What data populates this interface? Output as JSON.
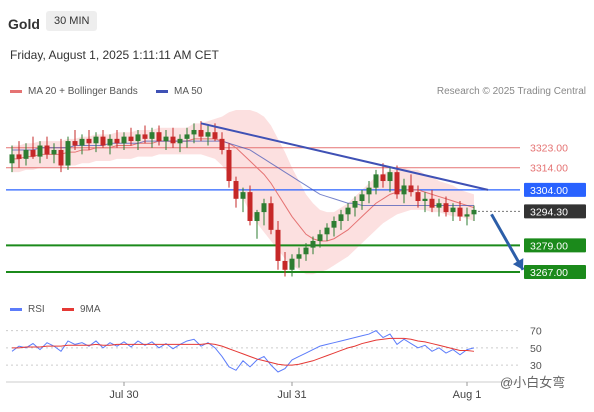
{
  "header": {
    "title": "Gold",
    "timeframe": "30 MIN"
  },
  "timestamp": "Friday, August 1, 2025 1:11:11 AM CET",
  "legend": {
    "ma20_label": "MA 20 + Bollinger Bands",
    "ma50_label": "MA 50"
  },
  "credit": "Research © 2025 Trading Central",
  "rsi_legend": {
    "rsi_label": "RSI",
    "ma_label": "9MA"
  },
  "watermark": "@小白女弯",
  "colors": {
    "up": "#2e7d32",
    "down": "#c62828",
    "ma20": "#e57373",
    "ma50": "#3f51b5",
    "band": "#f8bbbb",
    "resistance": "#e57373",
    "pivot": "#2962ff",
    "support": "#1b8a1b",
    "trendline": "#3f51b5",
    "rsi": "#5c7cfa",
    "rsi_ma": "#e53935"
  },
  "chart_data": {
    "type": "candlestick",
    "instrument": "Gold",
    "timeframe": "30 MIN",
    "x_ticks": [
      "Jul 30",
      "Jul 31",
      "Aug 1"
    ],
    "x_tick_index": [
      16,
      40,
      65
    ],
    "price_ylim": [
      3258,
      3340
    ],
    "levels": [
      {
        "label": "3323.00",
        "value": 3323,
        "kind": "resistance"
      },
      {
        "label": "3314.00",
        "value": 3314,
        "kind": "resistance"
      },
      {
        "label": "3304.00",
        "value": 3304,
        "kind": "pivot"
      },
      {
        "label": "3294.30",
        "value": 3294.3,
        "kind": "current"
      },
      {
        "label": "3279.00",
        "value": 3279,
        "kind": "support"
      },
      {
        "label": "3267.00",
        "value": 3267,
        "kind": "support"
      }
    ],
    "trendline": {
      "from": [
        27,
        3334
      ],
      "to": [
        68,
        3304
      ]
    },
    "forecast_arrow": {
      "from": [
        68.5,
        3293
      ],
      "to": [
        73,
        3268
      ]
    },
    "candles": [
      {
        "o": 3316,
        "h": 3324,
        "l": 3312,
        "c": 3320
      },
      {
        "o": 3320,
        "h": 3326,
        "l": 3314,
        "c": 3318
      },
      {
        "o": 3318,
        "h": 3325,
        "l": 3315,
        "c": 3322
      },
      {
        "o": 3322,
        "h": 3328,
        "l": 3318,
        "c": 3319
      },
      {
        "o": 3319,
        "h": 3326,
        "l": 3316,
        "c": 3324
      },
      {
        "o": 3324,
        "h": 3328,
        "l": 3318,
        "c": 3320
      },
      {
        "o": 3320,
        "h": 3325,
        "l": 3316,
        "c": 3322
      },
      {
        "o": 3322,
        "h": 3327,
        "l": 3312,
        "c": 3315
      },
      {
        "o": 3315,
        "h": 3328,
        "l": 3313,
        "c": 3326
      },
      {
        "o": 3326,
        "h": 3331,
        "l": 3322,
        "c": 3324
      },
      {
        "o": 3324,
        "h": 3329,
        "l": 3320,
        "c": 3327
      },
      {
        "o": 3327,
        "h": 3331,
        "l": 3322,
        "c": 3325
      },
      {
        "o": 3325,
        "h": 3330,
        "l": 3321,
        "c": 3328
      },
      {
        "o": 3328,
        "h": 3331,
        "l": 3323,
        "c": 3324
      },
      {
        "o": 3324,
        "h": 3329,
        "l": 3320,
        "c": 3327
      },
      {
        "o": 3327,
        "h": 3331,
        "l": 3323,
        "c": 3325
      },
      {
        "o": 3325,
        "h": 3330,
        "l": 3322,
        "c": 3328
      },
      {
        "o": 3328,
        "h": 3332,
        "l": 3324,
        "c": 3326
      },
      {
        "o": 3326,
        "h": 3331,
        "l": 3322,
        "c": 3329
      },
      {
        "o": 3329,
        "h": 3333,
        "l": 3325,
        "c": 3327
      },
      {
        "o": 3327,
        "h": 3332,
        "l": 3323,
        "c": 3330
      },
      {
        "o": 3330,
        "h": 3333,
        "l": 3324,
        "c": 3326
      },
      {
        "o": 3326,
        "h": 3331,
        "l": 3322,
        "c": 3328
      },
      {
        "o": 3328,
        "h": 3332,
        "l": 3323,
        "c": 3325
      },
      {
        "o": 3325,
        "h": 3329,
        "l": 3321,
        "c": 3327
      },
      {
        "o": 3327,
        "h": 3332,
        "l": 3323,
        "c": 3329
      },
      {
        "o": 3329,
        "h": 3334,
        "l": 3325,
        "c": 3331
      },
      {
        "o": 3331,
        "h": 3335,
        "l": 3326,
        "c": 3328
      },
      {
        "o": 3328,
        "h": 3333,
        "l": 3324,
        "c": 3330
      },
      {
        "o": 3330,
        "h": 3334,
        "l": 3326,
        "c": 3327
      },
      {
        "o": 3327,
        "h": 3330,
        "l": 3320,
        "c": 3322
      },
      {
        "o": 3322,
        "h": 3325,
        "l": 3305,
        "c": 3308
      },
      {
        "o": 3308,
        "h": 3310,
        "l": 3296,
        "c": 3300
      },
      {
        "o": 3300,
        "h": 3305,
        "l": 3294,
        "c": 3303
      },
      {
        "o": 3303,
        "h": 3306,
        "l": 3288,
        "c": 3290
      },
      {
        "o": 3290,
        "h": 3295,
        "l": 3282,
        "c": 3294
      },
      {
        "o": 3294,
        "h": 3300,
        "l": 3288,
        "c": 3298
      },
      {
        "o": 3298,
        "h": 3301,
        "l": 3284,
        "c": 3286
      },
      {
        "o": 3286,
        "h": 3290,
        "l": 3268,
        "c": 3272
      },
      {
        "o": 3272,
        "h": 3276,
        "l": 3265,
        "c": 3268
      },
      {
        "o": 3268,
        "h": 3275,
        "l": 3265,
        "c": 3273
      },
      {
        "o": 3273,
        "h": 3278,
        "l": 3269,
        "c": 3275
      },
      {
        "o": 3275,
        "h": 3280,
        "l": 3272,
        "c": 3278
      },
      {
        "o": 3278,
        "h": 3283,
        "l": 3275,
        "c": 3281
      },
      {
        "o": 3281,
        "h": 3286,
        "l": 3278,
        "c": 3284
      },
      {
        "o": 3284,
        "h": 3289,
        "l": 3281,
        "c": 3287
      },
      {
        "o": 3287,
        "h": 3292,
        "l": 3283,
        "c": 3290
      },
      {
        "o": 3290,
        "h": 3295,
        "l": 3286,
        "c": 3293
      },
      {
        "o": 3293,
        "h": 3298,
        "l": 3290,
        "c": 3296
      },
      {
        "o": 3296,
        "h": 3301,
        "l": 3292,
        "c": 3299
      },
      {
        "o": 3299,
        "h": 3304,
        "l": 3295,
        "c": 3302
      },
      {
        "o": 3302,
        "h": 3308,
        "l": 3298,
        "c": 3305
      },
      {
        "o": 3305,
        "h": 3313,
        "l": 3302,
        "c": 3311
      },
      {
        "o": 3311,
        "h": 3316,
        "l": 3305,
        "c": 3308
      },
      {
        "o": 3308,
        "h": 3314,
        "l": 3303,
        "c": 3312
      },
      {
        "o": 3312,
        "h": 3315,
        "l": 3300,
        "c": 3302
      },
      {
        "o": 3302,
        "h": 3309,
        "l": 3298,
        "c": 3306
      },
      {
        "o": 3306,
        "h": 3311,
        "l": 3301,
        "c": 3303
      },
      {
        "o": 3303,
        "h": 3306,
        "l": 3296,
        "c": 3299
      },
      {
        "o": 3299,
        "h": 3303,
        "l": 3294,
        "c": 3300
      },
      {
        "o": 3300,
        "h": 3304,
        "l": 3294,
        "c": 3296
      },
      {
        "o": 3296,
        "h": 3300,
        "l": 3292,
        "c": 3298
      },
      {
        "o": 3298,
        "h": 3301,
        "l": 3292,
        "c": 3294
      },
      {
        "o": 3294,
        "h": 3298,
        "l": 3290,
        "c": 3296
      },
      {
        "o": 3296,
        "h": 3299,
        "l": 3290,
        "c": 3292
      },
      {
        "o": 3292,
        "h": 3296,
        "l": 3288,
        "c": 3293
      },
      {
        "o": 3293,
        "h": 3297,
        "l": 3290,
        "c": 3295
      }
    ],
    "ma20": [
      3318,
      3318,
      3319,
      3319,
      3320,
      3320,
      3320,
      3320,
      3321,
      3321,
      3322,
      3322,
      3323,
      3323,
      3323,
      3324,
      3324,
      3324,
      3325,
      3325,
      3325,
      3326,
      3326,
      3326,
      3326,
      3326,
      3327,
      3327,
      3327,
      3327,
      3326,
      3325,
      3323,
      3320,
      3317,
      3314,
      3311,
      3307,
      3302,
      3297,
      3292,
      3288,
      3284,
      3282,
      3281,
      3281,
      3282,
      3284,
      3286,
      3289,
      3292,
      3295,
      3298,
      3300,
      3302,
      3303,
      3304,
      3304,
      3304,
      3303,
      3302,
      3301,
      3300,
      3299,
      3298,
      3297,
      3296
    ],
    "ma50": [
      3322,
      3322,
      3322,
      3322,
      3323,
      3323,
      3323,
      3323,
      3323,
      3324,
      3324,
      3324,
      3324,
      3324,
      3325,
      3325,
      3325,
      3325,
      3325,
      3326,
      3326,
      3326,
      3326,
      3326,
      3326,
      3326,
      3326,
      3326,
      3326,
      3326,
      3326,
      3325,
      3324,
      3323,
      3322,
      3320,
      3318,
      3316,
      3314,
      3312,
      3310,
      3308,
      3306,
      3304,
      3302,
      3301,
      3300,
      3299,
      3298,
      3298,
      3297,
      3297,
      3297,
      3297,
      3297,
      3297,
      3297,
      3297,
      3297,
      3297,
      3297,
      3297,
      3297,
      3297,
      3297,
      3297,
      3297
    ],
    "bb_width": [
      6,
      6,
      6,
      6,
      6,
      6,
      6,
      6,
      6,
      6,
      6,
      6,
      6,
      6,
      6,
      6,
      6,
      6,
      6,
      6,
      6,
      6,
      6,
      6,
      6,
      6,
      7,
      7,
      8,
      9,
      11,
      14,
      17,
      20,
      23,
      25,
      26,
      26,
      25,
      24,
      22,
      20,
      18,
      16,
      14,
      13,
      12,
      12,
      12,
      12,
      12,
      12,
      12,
      11,
      11,
      10,
      10,
      9,
      9,
      8,
      8,
      7,
      7,
      7,
      6,
      6,
      6
    ],
    "rsi": {
      "ticks": [
        "70",
        "50",
        "30"
      ],
      "tick_values": [
        70,
        50,
        30
      ],
      "ylim": [
        22,
        80
      ],
      "rsi_values": [
        46,
        52,
        50,
        55,
        48,
        56,
        52,
        46,
        58,
        54,
        56,
        52,
        58,
        50,
        56,
        52,
        57,
        51,
        58,
        53,
        57,
        50,
        55,
        49,
        54,
        58,
        60,
        52,
        56,
        50,
        40,
        28,
        24,
        35,
        28,
        36,
        40,
        30,
        22,
        26,
        36,
        40,
        44,
        48,
        52,
        54,
        56,
        58,
        60,
        62,
        64,
        66,
        70,
        62,
        66,
        54,
        60,
        55,
        50,
        53,
        46,
        50,
        44,
        48,
        42,
        48,
        50
      ],
      "ma9_values": [
        50,
        50,
        51,
        51,
        51,
        52,
        52,
        52,
        53,
        53,
        53,
        53,
        54,
        53,
        53,
        54,
        54,
        54,
        54,
        54,
        54,
        54,
        54,
        54,
        54,
        54,
        54,
        54,
        55,
        54,
        52,
        49,
        46,
        43,
        40,
        37,
        35,
        33,
        31,
        30,
        30,
        31,
        33,
        35,
        38,
        41,
        44,
        47,
        50,
        52,
        55,
        57,
        59,
        60,
        61,
        61,
        61,
        60,
        58,
        57,
        55,
        53,
        51,
        49,
        47,
        47,
        46
      ]
    }
  }
}
